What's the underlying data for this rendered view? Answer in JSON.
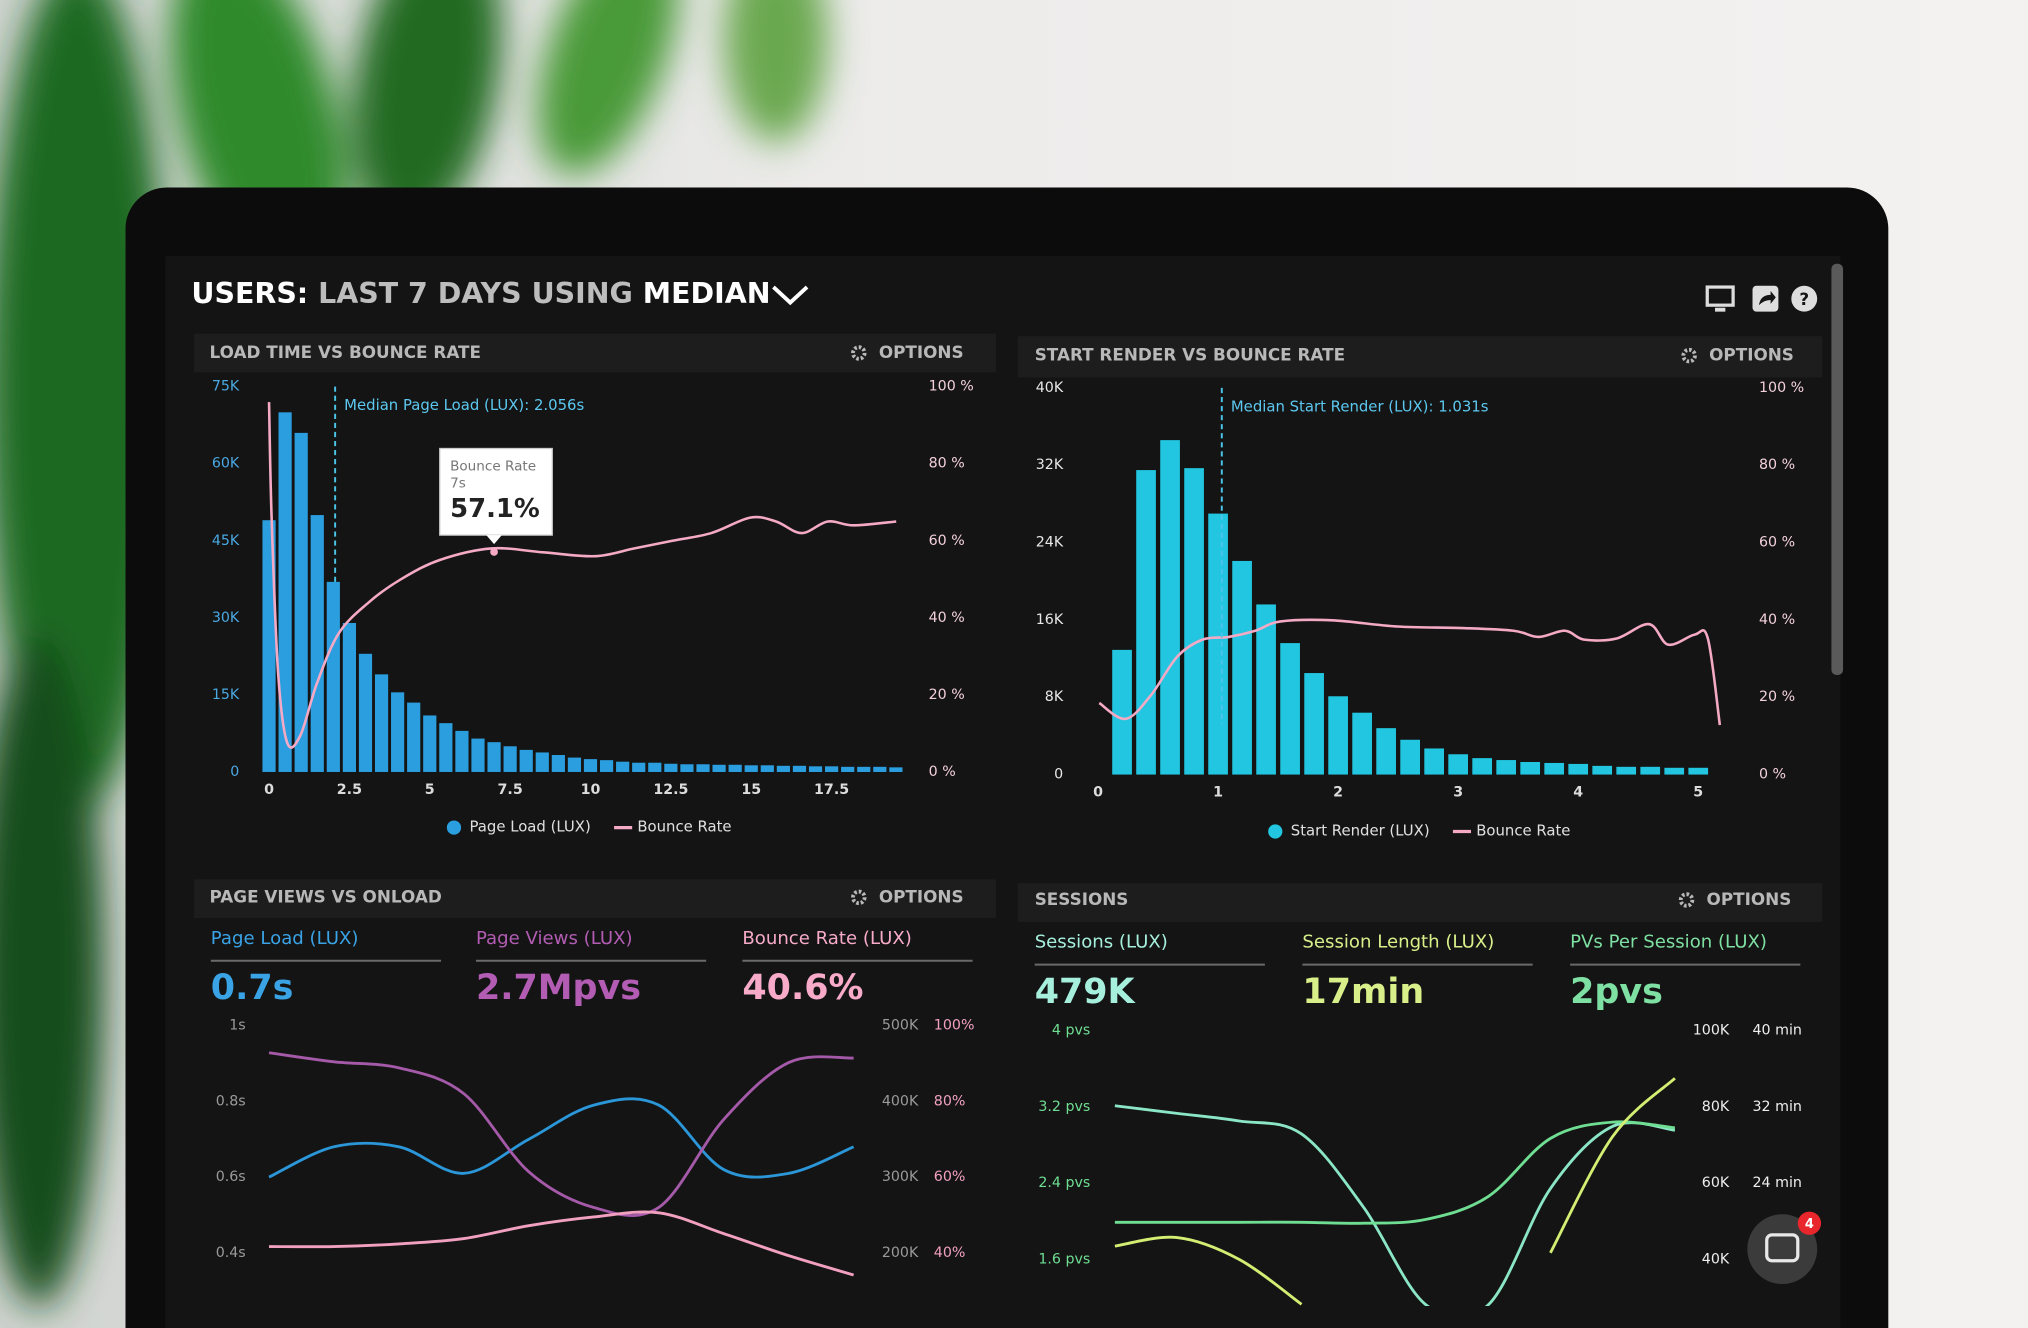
{
  "header": {
    "title": [
      "USERS:",
      "LAST 7 DAYS",
      "USING",
      "MEDIAN"
    ]
  },
  "chat_badge": "4",
  "chart_data": [
    {
      "type": "bar",
      "title": "LOAD TIME VS BOUNCE RATE",
      "options": "OPTIONS",
      "xlim": [
        -0.25,
        19.75
      ],
      "xticks": [
        0,
        2.5,
        5,
        7.5,
        10,
        12.5,
        15,
        17.5
      ],
      "ylim": [
        0,
        75000
      ],
      "yticks": [
        0,
        {
          "value": 15000,
          "label": "15K"
        },
        {
          "value": 30000,
          "label": "30K"
        },
        {
          "value": 45000,
          "label": "45K"
        },
        {
          "value": 60000,
          "label": "60K"
        },
        {
          "value": 75000,
          "label": "75K"
        }
      ],
      "y2lim": [
        0,
        100
      ],
      "y2ticks": [
        {
          "value": 0,
          "label": "0 %"
        },
        {
          "value": 20,
          "label": "20 %"
        },
        {
          "value": 40,
          "label": "40 %"
        },
        {
          "value": 60,
          "label": "60 %"
        },
        {
          "value": 80,
          "label": "80 %"
        },
        {
          "value": 100,
          "label": "100 %"
        }
      ],
      "annotation": {
        "text": "Median Page Load (LUX): 2.056s",
        "x": 2.056
      },
      "tooltip": {
        "title": "Bounce Rate",
        "subtitle": "7s",
        "value": "57.1%",
        "x": 7,
        "y": 57.1
      },
      "series": [
        {
          "name": "Page Load (LUX)",
          "type": "bar",
          "color": "#2b9ee0",
          "x": [
            0,
            0.5,
            1,
            1.5,
            2,
            2.5,
            3,
            3.5,
            4,
            4.5,
            5,
            5.5,
            6,
            6.5,
            7,
            7.5,
            8,
            8.5,
            9,
            9.5,
            10,
            10.5,
            11,
            11.5,
            12,
            12.5,
            13,
            13.5,
            14,
            14.5,
            15,
            15.5,
            16,
            16.5,
            17,
            17.5,
            18,
            18.5,
            19,
            19.5
          ],
          "values": [
            49000,
            70000,
            66000,
            50000,
            37000,
            29000,
            23000,
            19000,
            15500,
            13500,
            11000,
            9500,
            8000,
            6500,
            5800,
            5000,
            4300,
            3800,
            3300,
            2800,
            2500,
            2300,
            2000,
            1800,
            1800,
            1600,
            1500,
            1500,
            1400,
            1400,
            1300,
            1300,
            1200,
            1200,
            1100,
            1100,
            1000,
            1000,
            1000,
            900
          ]
        },
        {
          "name": "Bounce Rate",
          "type": "line",
          "axis": "y2",
          "color": "#f4a9c4",
          "x": [
            0,
            0.08,
            0.28,
            0.56,
            0.97,
            1.49,
            2.17,
            3.1,
            4.1,
            5.31,
            6.92,
            8.53,
            10.14,
            11.35,
            12.55,
            13.76,
            14.97,
            15.77,
            16.57,
            17.38,
            18.18,
            19.51
          ],
          "values": [
            96,
            66,
            26,
            7.7,
            9.4,
            23,
            36,
            44,
            50,
            55,
            58,
            57,
            56,
            58,
            60,
            62,
            66,
            65,
            62,
            65,
            64,
            65
          ]
        }
      ]
    },
    {
      "type": "bar",
      "title": "START RENDER VS BOUNCE RATE",
      "options": "OPTIONS",
      "xlim": [
        -0.1,
        5.2
      ],
      "xticks": [
        0,
        1,
        2,
        3,
        4,
        5
      ],
      "ylim": [
        0,
        40000
      ],
      "yticks": [
        0,
        {
          "value": 8000,
          "label": "8K"
        },
        {
          "value": 16000,
          "label": "16K"
        },
        {
          "value": 24000,
          "label": "24K"
        },
        {
          "value": 32000,
          "label": "32K"
        },
        {
          "value": 40000,
          "label": "40K"
        }
      ],
      "y2lim": [
        0,
        100
      ],
      "y2ticks": [
        {
          "value": 0,
          "label": "0 %"
        },
        {
          "value": 20,
          "label": "20 %"
        },
        {
          "value": 40,
          "label": "40 %"
        },
        {
          "value": 60,
          "label": "60 %"
        },
        {
          "value": 80,
          "label": "80 %"
        },
        {
          "value": 100,
          "label": "100 %"
        }
      ],
      "annotation": {
        "text": "Median Start Render (LUX): 1.031s",
        "x": 1.031
      },
      "series": [
        {
          "name": "Start Render (LUX)",
          "type": "bar",
          "color": "#22c6e0",
          "x": [
            0.2,
            0.4,
            0.6,
            0.8,
            1,
            1.2,
            1.4,
            1.6,
            1.8,
            2,
            2.2,
            2.4,
            2.6,
            2.8,
            3,
            3.2,
            3.4,
            3.6,
            3.8,
            4,
            4.2,
            4.4,
            4.6,
            4.8,
            5
          ],
          "values": [
            12900,
            31500,
            34600,
            31700,
            27000,
            22100,
            17600,
            13600,
            10500,
            8100,
            6400,
            4800,
            3600,
            2700,
            2100,
            1700,
            1500,
            1300,
            1200,
            1100,
            900,
            800,
            800,
            700,
            700
          ]
        },
        {
          "name": "Bounce Rate",
          "type": "line",
          "axis": "y2",
          "color": "#f4a9c4",
          "x": [
            0.01,
            0.23,
            0.44,
            0.66,
            0.87,
            1.09,
            1.31,
            1.52,
            1.95,
            2.49,
            3.03,
            3.46,
            3.67,
            3.89,
            4.05,
            4.32,
            4.59,
            4.75,
            4.97,
            5.08,
            5.18
          ],
          "values": [
            18.5,
            14.4,
            20.5,
            30.5,
            34.9,
            35.6,
            37.2,
            39.6,
            39.9,
            38.3,
            37.9,
            37.2,
            35.6,
            37.2,
            34.9,
            35.2,
            38.9,
            33.6,
            36.2,
            35.2,
            12.8
          ]
        }
      ]
    },
    {
      "type": "line",
      "title": "PAGE VIEWS VS ONLOAD",
      "options": "OPTIONS",
      "metrics": [
        {
          "label": "Page Load (LUX)",
          "value": "0.7s",
          "color": "#3aa3e6"
        },
        {
          "label": "Page Views (LUX)",
          "value": "2.7Mpvs",
          "color": "#b35cb4"
        },
        {
          "label": "Bounce Rate (LUX)",
          "value": "40.6%",
          "color": "#f7abc9"
        }
      ],
      "categories": [
        null,
        null,
        null,
        null,
        null,
        null,
        null,
        null,
        null,
        null
      ],
      "ylim": [
        0.4,
        1
      ],
      "yticks": [
        {
          "value": 1,
          "label": "1s"
        },
        {
          "value": 0.8,
          "label": "0.8s"
        },
        {
          "value": 0.6,
          "label": "0.6s"
        },
        {
          "value": 0.4,
          "label": "0.4s"
        }
      ],
      "y2lim": [
        200000,
        500000
      ],
      "y2ticks": [
        {
          "value": 500000,
          "label": "500K"
        },
        {
          "value": 400000,
          "label": "400K"
        },
        {
          "value": 300000,
          "label": "300K"
        },
        {
          "value": 200000,
          "label": "200K"
        }
      ],
      "y3lim": [
        40,
        100
      ],
      "y3ticks": [
        {
          "value": 100,
          "label": "100%"
        },
        {
          "value": 80,
          "label": "80%"
        },
        {
          "value": 60,
          "label": "60%"
        },
        {
          "value": 40,
          "label": "40%"
        }
      ],
      "series": [
        {
          "color": "#2b96d8",
          "values": [
            0.6,
            0.68,
            0.68,
            0.61,
            0.7,
            0.79,
            0.79,
            0.62,
            0.61,
            0.68
          ]
        },
        {
          "color": "#a55aa9",
          "axis": "y2",
          "values": [
            464000,
            452000,
            444000,
            410000,
            307000,
            260000,
            260000,
            376000,
            451000,
            457000
          ]
        },
        {
          "color": "#f2a0c0",
          "axis": "y3",
          "values": [
            41.7,
            41.7,
            42.4,
            43.8,
            47.2,
            49.5,
            50.6,
            45.1,
            39.3,
            34.2
          ]
        }
      ]
    },
    {
      "type": "line",
      "title": "SESSIONS",
      "options": "OPTIONS",
      "metrics": [
        {
          "label": "Sessions (LUX)",
          "value": "479K",
          "color": "#a6efdd"
        },
        {
          "label": "Session Length (LUX)",
          "value": "17min",
          "color": "#d8ef8a"
        },
        {
          "label": "PVs Per Session (LUX)",
          "value": "2pvs",
          "color": "#7ee0a2"
        }
      ],
      "categories": [
        null,
        null,
        null,
        null,
        null,
        null,
        null,
        null,
        null,
        null
      ],
      "ylim": [
        1.6,
        4
      ],
      "yticks": [
        {
          "value": 4,
          "label": "4 pvs"
        },
        {
          "value": 3.2,
          "label": "3.2 pvs"
        },
        {
          "value": 2.4,
          "label": "2.4 pvs"
        },
        {
          "value": 1.6,
          "label": "1.6 pvs"
        }
      ],
      "y2lim": [
        40000,
        100000
      ],
      "y2ticks": [
        {
          "value": 100000,
          "label": "100K"
        },
        {
          "value": 80000,
          "label": "80K"
        },
        {
          "value": 60000,
          "label": "60K"
        },
        {
          "value": 40000,
          "label": "40K"
        }
      ],
      "y3lim": [
        16,
        40
      ],
      "y3ticks": [
        {
          "value": 40,
          "label": "40 min"
        },
        {
          "value": 32,
          "label": "32 min"
        },
        {
          "value": 24,
          "label": "24 min"
        }
      ],
      "series": [
        {
          "color": "#8be6c6",
          "axis": "y2",
          "values": [
            80300,
            78300,
            76300,
            72900,
            53600,
            28100,
            28100,
            58600,
            74900,
            73900
          ]
        },
        {
          "color": "#6fde93",
          "values": [
            1.99,
            1.99,
            1.99,
            1.99,
            1.98,
            2.02,
            2.26,
            2.87,
            3.04,
            2.98
          ]
        },
        {
          "color": "#d3ee72",
          "axis": "y3",
          "values": [
            17.4,
            18.3,
            16,
            11.3,
            null,
            null,
            null,
            16.7,
            28.9,
            35
          ]
        }
      ]
    }
  ]
}
